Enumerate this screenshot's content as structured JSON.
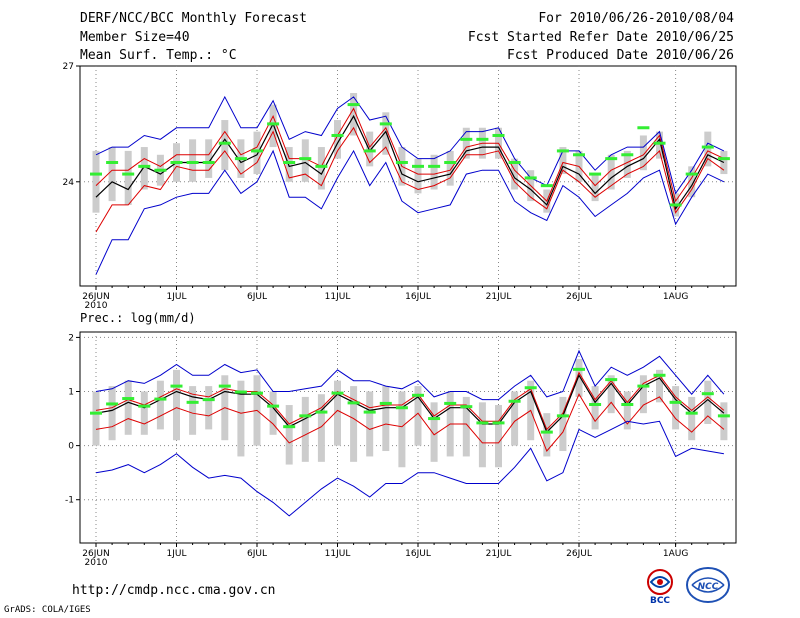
{
  "header": {
    "title": "DERF/NCC/BCC Monthly Forecast",
    "member": "Member Size=40",
    "variable": "Mean Surf. Temp.: °C",
    "period": "For 2010/06/26-2010/08/04",
    "started": "Fcst Started Refer Date 2010/06/25",
    "produced": "Fcst Produced Date 2010/06/26"
  },
  "footer": {
    "url": "http://cmdp.ncc.cma.gov.cn",
    "grads": "GrADS: COLA/IGES",
    "logo_bcc": "BCC",
    "logo_ncc": "NCC"
  },
  "colors": {
    "ens_mean": "#000000",
    "spread": "#dd0000",
    "extreme": "#0000cc",
    "obs": "#33ee33",
    "box": "#cccccc"
  },
  "chart_data": [
    {
      "type": "line",
      "title": "Mean Surf. Temp.: °C",
      "x": [
        "26JUN",
        "27JUN",
        "28JUN",
        "29JUN",
        "30JUN",
        "1JUL",
        "2JUL",
        "3JUL",
        "4JUL",
        "5JUL",
        "6JUL",
        "7JUL",
        "8JUL",
        "9JUL",
        "10JUL",
        "11JUL",
        "12JUL",
        "13JUL",
        "14JUL",
        "15JUL",
        "16JUL",
        "17JUL",
        "18JUL",
        "19JUL",
        "20JUL",
        "21JUL",
        "22JUL",
        "23JUL",
        "24JUL",
        "25JUL",
        "26JUL",
        "27JUL",
        "28JUL",
        "29JUL",
        "30JUL",
        "31JUL",
        "1AUG",
        "2AUG",
        "3AUG",
        "4AUG"
      ],
      "tick_labels": [
        "26JUN",
        "1JUL",
        "6JUL",
        "11JUL",
        "16JUL",
        "21JUL",
        "26JUL",
        "1AUG"
      ],
      "tick_year": "2010",
      "ylim": [
        21.3,
        27
      ],
      "yticks": [
        "24",
        "27"
      ],
      "series": [
        {
          "name": "max",
          "values": [
            24.7,
            24.9,
            24.9,
            25.2,
            25.1,
            25.4,
            25.4,
            25.4,
            26.2,
            25.4,
            25.4,
            26.1,
            25.1,
            25.3,
            25.2,
            25.9,
            26.2,
            25.6,
            25.7,
            24.9,
            24.6,
            24.6,
            24.8,
            25.3,
            25.3,
            25.4,
            24.6,
            24.1,
            23.9,
            24.8,
            24.8,
            24.3,
            24.7,
            24.9,
            24.9,
            25.3,
            23.7,
            24.3,
            25.0,
            24.8
          ]
        },
        {
          "name": "upper",
          "values": [
            23.9,
            24.3,
            24.3,
            24.6,
            24.4,
            24.7,
            24.7,
            24.7,
            25.3,
            24.7,
            24.9,
            25.7,
            24.6,
            24.6,
            24.4,
            25.2,
            25.9,
            24.9,
            25.4,
            24.4,
            24.2,
            24.2,
            24.3,
            24.9,
            25.0,
            25.0,
            24.3,
            23.9,
            23.5,
            24.5,
            24.4,
            23.9,
            24.3,
            24.5,
            24.7,
            25.2,
            23.5,
            24.1,
            24.8,
            24.6
          ]
        },
        {
          "name": "mean",
          "values": [
            23.6,
            24.0,
            23.8,
            24.4,
            24.2,
            24.5,
            24.5,
            24.5,
            25.1,
            24.5,
            24.7,
            25.5,
            24.4,
            24.5,
            24.2,
            25.0,
            25.7,
            24.8,
            25.3,
            24.2,
            24.0,
            24.1,
            24.2,
            24.8,
            24.9,
            24.9,
            24.1,
            23.8,
            23.4,
            24.4,
            24.2,
            23.7,
            24.1,
            24.4,
            24.6,
            25.1,
            23.3,
            23.9,
            24.7,
            24.5
          ]
        },
        {
          "name": "lower",
          "values": [
            22.7,
            23.4,
            23.4,
            23.9,
            23.8,
            24.4,
            24.3,
            24.3,
            24.8,
            24.2,
            24.5,
            25.3,
            24.1,
            24.2,
            23.9,
            24.8,
            25.4,
            24.5,
            24.9,
            24.0,
            23.8,
            23.9,
            24.1,
            24.7,
            24.7,
            24.8,
            24.0,
            23.6,
            23.3,
            24.3,
            24.0,
            23.6,
            23.9,
            24.2,
            24.4,
            24.8,
            23.2,
            23.8,
            24.6,
            24.3
          ]
        },
        {
          "name": "min",
          "values": [
            21.6,
            22.5,
            22.5,
            23.3,
            23.4,
            23.6,
            23.7,
            23.7,
            24.3,
            23.7,
            24.0,
            24.8,
            23.6,
            23.6,
            23.3,
            24.1,
            24.8,
            23.9,
            24.5,
            23.5,
            23.2,
            23.3,
            23.4,
            24.2,
            24.3,
            24.3,
            23.5,
            23.2,
            23.0,
            23.9,
            23.6,
            23.1,
            23.4,
            23.7,
            24.1,
            24.3,
            22.9,
            23.6,
            24.2,
            24.0
          ]
        },
        {
          "name": "observed",
          "values": [
            24.2,
            24.5,
            24.2,
            24.4,
            24.3,
            24.5,
            24.5,
            24.5,
            25.0,
            24.6,
            24.8,
            25.5,
            24.5,
            24.6,
            24.4,
            25.2,
            26.0,
            24.8,
            25.5,
            24.5,
            24.4,
            24.4,
            24.5,
            25.1,
            25.1,
            25.2,
            24.5,
            24.1,
            23.9,
            24.8,
            24.7,
            24.2,
            24.6,
            24.7,
            25.4,
            25.0,
            23.4,
            24.2,
            24.9,
            24.6
          ]
        }
      ],
      "box_range": [
        [
          23.2,
          24.8
        ],
        [
          23.5,
          24.9
        ],
        [
          23.4,
          24.8
        ],
        [
          23.8,
          24.9
        ],
        [
          23.9,
          24.7
        ],
        [
          24.0,
          25.0
        ],
        [
          24.0,
          25.1
        ],
        [
          24.1,
          25.1
        ],
        [
          24.3,
          25.6
        ],
        [
          24.1,
          25.1
        ],
        [
          24.2,
          25.3
        ],
        [
          24.9,
          26.0
        ],
        [
          24.0,
          24.9
        ],
        [
          24.0,
          25.1
        ],
        [
          23.8,
          24.9
        ],
        [
          24.6,
          25.6
        ],
        [
          25.2,
          26.3
        ],
        [
          24.4,
          25.3
        ],
        [
          24.7,
          25.8
        ],
        [
          23.9,
          24.9
        ],
        [
          23.7,
          24.6
        ],
        [
          23.8,
          24.7
        ],
        [
          23.9,
          24.8
        ],
        [
          24.6,
          25.4
        ],
        [
          24.6,
          25.4
        ],
        [
          24.6,
          25.4
        ],
        [
          23.8,
          24.6
        ],
        [
          23.5,
          24.3
        ],
        [
          23.2,
          23.8
        ],
        [
          24.2,
          24.9
        ],
        [
          24.0,
          24.8
        ],
        [
          23.5,
          24.2
        ],
        [
          23.8,
          24.7
        ],
        [
          24.1,
          24.8
        ],
        [
          24.3,
          25.2
        ],
        [
          24.6,
          25.3
        ],
        [
          23.1,
          23.7
        ],
        [
          23.6,
          24.4
        ],
        [
          24.4,
          25.3
        ],
        [
          24.2,
          24.8
        ]
      ]
    },
    {
      "type": "line",
      "title": "Prec.: log(mm/d)",
      "x": [
        "26JUN",
        "27JUN",
        "28JUN",
        "29JUN",
        "30JUN",
        "1JUL",
        "2JUL",
        "3JUL",
        "4JUL",
        "5JUL",
        "6JUL",
        "7JUL",
        "8JUL",
        "9JUL",
        "10JUL",
        "11JUL",
        "12JUL",
        "13JUL",
        "14JUL",
        "15JUL",
        "16JUL",
        "17JUL",
        "18JUL",
        "19JUL",
        "20JUL",
        "21JUL",
        "22JUL",
        "23JUL",
        "24JUL",
        "25JUL",
        "26JUL",
        "27JUL",
        "28JUL",
        "29JUL",
        "30JUL",
        "31JUL",
        "1AUG",
        "2AUG",
        "3AUG",
        "4AUG"
      ],
      "tick_labels": [
        "26JUN",
        "1JUL",
        "6JUL",
        "11JUL",
        "16JUL",
        "21JUL",
        "26JUL",
        "1AUG"
      ],
      "tick_year": "2010",
      "ylim": [
        -1.8,
        2.1
      ],
      "yticks": [
        "-1",
        "0",
        "1",
        "2"
      ],
      "series": [
        {
          "name": "max",
          "values": [
            1.0,
            1.05,
            1.2,
            1.15,
            1.3,
            1.5,
            1.3,
            1.3,
            1.5,
            1.35,
            1.4,
            1.0,
            1.0,
            1.05,
            1.1,
            1.4,
            1.2,
            1.2,
            1.1,
            1.05,
            1.2,
            0.9,
            1.0,
            1.0,
            0.85,
            0.85,
            1.1,
            1.3,
            0.9,
            1.0,
            1.75,
            1.1,
            1.45,
            1.3,
            1.45,
            1.65,
            1.3,
            0.95,
            1.3,
            0.95
          ]
        },
        {
          "name": "upper",
          "values": [
            0.65,
            0.7,
            0.85,
            0.75,
            0.9,
            1.05,
            0.95,
            0.9,
            1.05,
            1.0,
            1.0,
            0.75,
            0.4,
            0.55,
            0.7,
            1.0,
            0.85,
            0.7,
            0.75,
            0.75,
            0.95,
            0.55,
            0.75,
            0.75,
            0.45,
            0.45,
            0.85,
            1.05,
            0.3,
            0.6,
            1.35,
            0.85,
            1.2,
            0.8,
            1.15,
            1.3,
            0.9,
            0.65,
            0.9,
            0.65
          ]
        },
        {
          "name": "mean",
          "values": [
            0.6,
            0.65,
            0.8,
            0.7,
            0.85,
            1.0,
            0.9,
            0.85,
            1.0,
            0.95,
            0.95,
            0.7,
            0.35,
            0.5,
            0.65,
            0.95,
            0.8,
            0.65,
            0.7,
            0.7,
            0.9,
            0.5,
            0.7,
            0.7,
            0.4,
            0.4,
            0.8,
            1.0,
            0.25,
            0.55,
            1.3,
            0.8,
            1.15,
            0.75,
            1.1,
            1.25,
            0.85,
            0.6,
            0.85,
            0.6
          ]
        },
        {
          "name": "lower",
          "values": [
            0.3,
            0.35,
            0.5,
            0.4,
            0.55,
            0.7,
            0.6,
            0.55,
            0.7,
            0.6,
            0.65,
            0.4,
            0.05,
            0.2,
            0.35,
            0.65,
            0.5,
            0.3,
            0.4,
            0.35,
            0.6,
            0.2,
            0.4,
            0.4,
            0.05,
            0.05,
            0.45,
            0.65,
            -0.1,
            0.25,
            0.95,
            0.45,
            0.8,
            0.4,
            0.75,
            0.9,
            0.5,
            0.25,
            0.55,
            0.3
          ]
        },
        {
          "name": "min",
          "values": [
            -0.5,
            -0.45,
            -0.35,
            -0.5,
            -0.35,
            -0.15,
            -0.4,
            -0.6,
            -0.55,
            -0.6,
            -0.85,
            -1.05,
            -1.3,
            -1.05,
            -0.8,
            -0.6,
            -0.75,
            -0.95,
            -0.7,
            -0.7,
            -0.5,
            -0.5,
            -0.6,
            -0.7,
            -0.7,
            -0.7,
            -0.4,
            -0.05,
            -0.65,
            -0.5,
            0.3,
            0.15,
            0.3,
            0.45,
            0.4,
            0.45,
            -0.2,
            -0.05,
            -0.1,
            -0.15
          ]
        },
        {
          "name": "observed",
          "values": [
            0.6,
            0.77,
            0.87,
            0.73,
            0.86,
            1.1,
            0.8,
            0.85,
            1.1,
            0.99,
            0.97,
            0.73,
            0.35,
            0.55,
            0.62,
            0.97,
            0.79,
            0.62,
            0.78,
            0.7,
            0.93,
            0.5,
            0.78,
            0.72,
            0.42,
            0.42,
            0.82,
            1.07,
            0.25,
            0.55,
            1.41,
            0.76,
            1.22,
            0.76,
            1.1,
            1.3,
            0.8,
            0.6,
            0.96,
            0.55
          ]
        }
      ],
      "box_range": [
        [
          0.0,
          1.0
        ],
        [
          0.1,
          1.1
        ],
        [
          0.2,
          1.2
        ],
        [
          0.2,
          1.0
        ],
        [
          0.3,
          1.2
        ],
        [
          0.1,
          1.4
        ],
        [
          0.2,
          1.1
        ],
        [
          0.3,
          1.1
        ],
        [
          0.1,
          1.3
        ],
        [
          -0.2,
          1.2
        ],
        [
          0.0,
          1.3
        ],
        [
          0.2,
          1.0
        ],
        [
          -0.35,
          0.75
        ],
        [
          -0.3,
          0.9
        ],
        [
          -0.3,
          0.95
        ],
        [
          0.0,
          1.2
        ],
        [
          -0.3,
          1.1
        ],
        [
          -0.2,
          1.0
        ],
        [
          -0.1,
          1.1
        ],
        [
          -0.4,
          1.0
        ],
        [
          0.0,
          1.1
        ],
        [
          -0.3,
          0.8
        ],
        [
          -0.2,
          1.0
        ],
        [
          -0.2,
          0.9
        ],
        [
          -0.4,
          0.8
        ],
        [
          -0.4,
          0.75
        ],
        [
          0.0,
          1.0
        ],
        [
          0.1,
          1.2
        ],
        [
          -0.2,
          0.6
        ],
        [
          -0.1,
          0.9
        ],
        [
          0.9,
          1.6
        ],
        [
          0.3,
          1.1
        ],
        [
          0.6,
          1.3
        ],
        [
          0.3,
          1.0
        ],
        [
          0.6,
          1.3
        ],
        [
          0.8,
          1.4
        ],
        [
          0.3,
          1.1
        ],
        [
          0.1,
          0.9
        ],
        [
          0.4,
          1.2
        ],
        [
          0.1,
          0.8
        ]
      ]
    }
  ]
}
